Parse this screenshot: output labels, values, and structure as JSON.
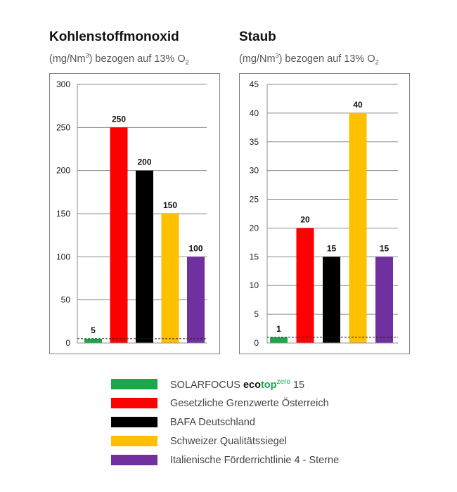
{
  "charts": [
    {
      "title": "Kohlenstoffmonoxid",
      "subtitle": {
        "pre": "(mg/Nm",
        "sup": "3",
        "mid": ") bezogen auf 13% O",
        "sub": "2"
      }
    },
    {
      "title": "Staub",
      "subtitle": {
        "pre": "(mg/Nm",
        "sup": "3",
        "mid": ") bezogen auf 13% O",
        "sub": "2"
      }
    }
  ],
  "chart_data": [
    {
      "type": "bar",
      "title": "Kohlenstoffmonoxid",
      "unit": "(mg/Nm³) bezogen auf 13% O₂",
      "categories": [
        "SOLARFOCUS ecotop zero 15",
        "Gesetzliche Grenzwerte Österreich",
        "BAFA Deutschland",
        "Schweizer Qualitätssiegel",
        "Italienische Förderrichtlinie 4 - Sterne"
      ],
      "values": [
        5,
        250,
        200,
        150,
        100
      ],
      "data_labels": [
        "5",
        "250",
        "200",
        "150",
        "100"
      ],
      "ylim": [
        0,
        300
      ],
      "yticks": [
        0,
        50,
        100,
        150,
        200,
        250,
        300
      ],
      "ytick_labels": [
        "0",
        "50",
        "100",
        "150",
        "200",
        "250",
        "300"
      ],
      "reference_line": 5,
      "grid": true,
      "colors": [
        "#1aa84b",
        "#ff0000",
        "#000000",
        "#ffc000",
        "#7030a0"
      ]
    },
    {
      "type": "bar",
      "title": "Staub",
      "unit": "(mg/Nm³) bezogen auf 13% O₂",
      "categories": [
        "SOLARFOCUS ecotop zero 15",
        "Gesetzliche Grenzwerte Österreich",
        "BAFA Deutschland",
        "Schweizer Qualitätssiegel",
        "Italienische Förderrichtlinie 4 - Sterne"
      ],
      "values": [
        1,
        20,
        15,
        40,
        15
      ],
      "data_labels": [
        "1",
        "20",
        "15",
        "40",
        "15"
      ],
      "ylim": [
        0,
        45
      ],
      "yticks": [
        0,
        5,
        10,
        15,
        20,
        25,
        30,
        35,
        40,
        45
      ],
      "ytick_labels": [
        "0",
        "5",
        "10",
        "15",
        "20",
        "25",
        "30",
        "35",
        "40",
        "45"
      ],
      "reference_line": 1,
      "grid": true,
      "colors": [
        "#1aa84b",
        "#ff0000",
        "#000000",
        "#ffc000",
        "#7030a0"
      ]
    }
  ],
  "legend": [
    {
      "color": "#1aa84b",
      "brand": "SOLARFOCUS ",
      "eco": "eco",
      "top": "top",
      "zero": "zero",
      "suffix": "15"
    },
    {
      "color": "#ff0000",
      "label": "Gesetzliche Grenzwerte Österreich"
    },
    {
      "color": "#000000",
      "label": "BAFA Deutschland"
    },
    {
      "color": "#ffc000",
      "label": "Schweizer Qualitätssiegel"
    },
    {
      "color": "#7030a0",
      "label": "Italienische Förderrichtlinie 4 - Sterne"
    }
  ]
}
